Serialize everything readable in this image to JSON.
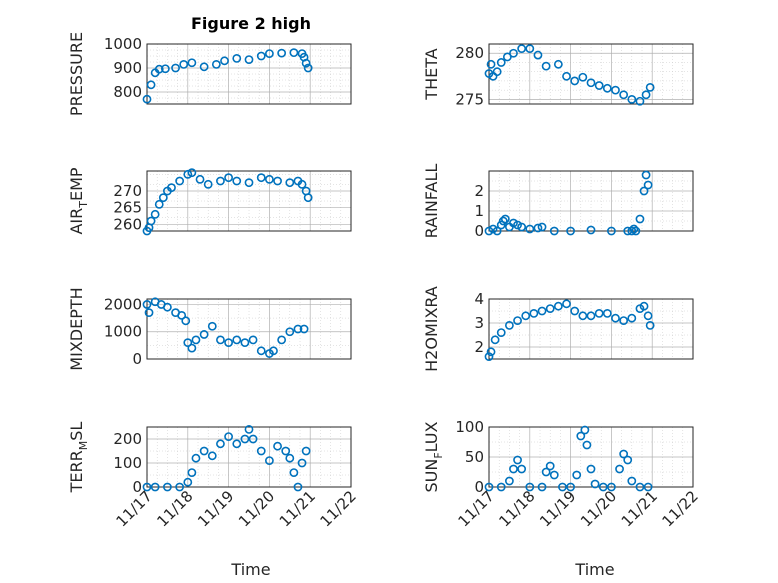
{
  "figure": {
    "title": "Figure 2 high",
    "x_label": "Time"
  },
  "chart_data": [
    {
      "id": "pressure",
      "type": "scatter",
      "ylabel": "PRESSURE",
      "xlim": [
        0,
        5
      ],
      "ylim": [
        750,
        1000
      ],
      "yticks": [
        800,
        900,
        1000
      ],
      "yminor": [
        750,
        775,
        825,
        850,
        875,
        925,
        950,
        975
      ],
      "xticks": [
        "11/17",
        "11/18",
        "11/19",
        "11/20",
        "11/21",
        "11/22"
      ],
      "show_xticklabels": false,
      "series": [
        {
          "x": [
            0,
            0.1,
            0.2,
            0.3,
            0.45,
            0.7,
            0.9,
            1.1,
            1.4,
            1.7,
            1.9,
            2.2,
            2.5,
            2.8,
            3.0,
            3.3,
            3.6,
            3.8,
            3.85,
            3.9,
            3.95
          ],
          "y": [
            770,
            830,
            880,
            895,
            897,
            900,
            915,
            922,
            905,
            915,
            930,
            940,
            935,
            950,
            960,
            962,
            964,
            960,
            945,
            920,
            900
          ]
        }
      ]
    },
    {
      "id": "theta",
      "type": "scatter",
      "ylabel": "THETA",
      "xlim": [
        0,
        5
      ],
      "ylim": [
        274.5,
        281
      ],
      "yticks": [
        275,
        280
      ],
      "yminor": [
        276,
        277,
        278,
        279
      ],
      "xticks": [
        "11/17",
        "11/18",
        "11/19",
        "11/20",
        "11/21",
        "11/22"
      ],
      "show_xticklabels": false,
      "series": [
        {
          "x": [
            0,
            0.05,
            0.1,
            0.2,
            0.3,
            0.45,
            0.6,
            0.8,
            1.0,
            1.2,
            1.4,
            1.7,
            1.9,
            2.1,
            2.3,
            2.5,
            2.7,
            2.9,
            3.1,
            3.3,
            3.5,
            3.7,
            3.85,
            3.95
          ],
          "y": [
            277.8,
            278.8,
            277.5,
            278,
            279,
            279.6,
            280,
            280.5,
            280.5,
            279.8,
            278.6,
            278.8,
            277.5,
            277,
            277.4,
            276.8,
            276.5,
            276.2,
            276,
            275.5,
            275,
            274.8,
            275.5,
            276.3
          ]
        }
      ]
    },
    {
      "id": "air_temp",
      "type": "scatter",
      "ylabel": "AIR",
      "ylabel_sub": "T",
      "ylabel_tail": "EMP",
      "xlim": [
        0,
        5
      ],
      "ylim": [
        258,
        276
      ],
      "yticks": [
        260,
        265,
        270
      ],
      "yminor": [
        258,
        262,
        267,
        272,
        275
      ],
      "xticks": [
        "11/17",
        "11/18",
        "11/19",
        "11/20",
        "11/21",
        "11/22"
      ],
      "show_xticklabels": false,
      "series": [
        {
          "x": [
            0,
            0.05,
            0.1,
            0.2,
            0.3,
            0.4,
            0.5,
            0.6,
            0.8,
            1.0,
            1.1,
            1.3,
            1.5,
            1.8,
            2.0,
            2.2,
            2.5,
            2.8,
            3.0,
            3.2,
            3.5,
            3.7,
            3.8,
            3.9,
            3.95
          ],
          "y": [
            258,
            259,
            261,
            263,
            266,
            268,
            270,
            271,
            273,
            275,
            275.5,
            273.5,
            272,
            273,
            274,
            273,
            272.5,
            274,
            273.5,
            273,
            272.5,
            273,
            272,
            270,
            268
          ]
        }
      ]
    },
    {
      "id": "rainfall",
      "type": "scatter",
      "ylabel": "RAINFALL",
      "xlim": [
        0,
        5
      ],
      "ylim": [
        0,
        3
      ],
      "yticks": [
        0,
        1,
        2
      ],
      "yminor": [
        0.5,
        1.5,
        2.5
      ],
      "xticks": [
        "11/17",
        "11/18",
        "11/19",
        "11/20",
        "11/21",
        "11/22"
      ],
      "show_xticklabels": false,
      "series": [
        {
          "x": [
            0,
            0.1,
            0.2,
            0.3,
            0.35,
            0.4,
            0.5,
            0.6,
            0.7,
            0.8,
            1.0,
            1.2,
            1.3,
            1.6,
            2.0,
            2.5,
            3.0,
            3.4,
            3.5,
            3.55,
            3.6,
            3.7,
            3.8,
            3.85,
            3.9
          ],
          "y": [
            0,
            0.1,
            0,
            0.3,
            0.5,
            0.6,
            0.2,
            0.4,
            0.3,
            0.2,
            0.1,
            0.15,
            0.2,
            0,
            0,
            0.05,
            0,
            0,
            0,
            0.1,
            0,
            0.6,
            2.0,
            2.8,
            2.3
          ]
        }
      ]
    },
    {
      "id": "mixdepth",
      "type": "scatter",
      "ylabel": "MIXDEPTH",
      "xlim": [
        0,
        5
      ],
      "ylim": [
        0,
        2200
      ],
      "yticks": [
        0,
        1000,
        2000
      ],
      "yminor": [
        500,
        1500
      ],
      "xticks": [
        "11/17",
        "11/18",
        "11/19",
        "11/20",
        "11/21",
        "11/22"
      ],
      "show_xticklabels": false,
      "series": [
        {
          "x": [
            0,
            0.05,
            0.2,
            0.35,
            0.5,
            0.7,
            0.85,
            0.95,
            1.0,
            1.1,
            1.2,
            1.4,
            1.6,
            1.8,
            2.0,
            2.2,
            2.4,
            2.6,
            2.8,
            3.0,
            3.1,
            3.3,
            3.5,
            3.7,
            3.85
          ],
          "y": [
            2000,
            1700,
            2100,
            2000,
            1900,
            1700,
            1600,
            1400,
            600,
            400,
            700,
            900,
            1200,
            700,
            600,
            700,
            600,
            700,
            300,
            200,
            300,
            700,
            1000,
            1100,
            1100
          ]
        }
      ]
    },
    {
      "id": "h2omixra",
      "type": "scatter",
      "ylabel": "H2OMIXRA",
      "xlim": [
        0,
        5
      ],
      "ylim": [
        1.5,
        4
      ],
      "yticks": [
        2,
        3,
        4
      ],
      "yminor": [
        2.5,
        3.5
      ],
      "xticks": [
        "11/17",
        "11/18",
        "11/19",
        "11/20",
        "11/21",
        "11/22"
      ],
      "show_xticklabels": false,
      "series": [
        {
          "x": [
            0,
            0.05,
            0.15,
            0.3,
            0.5,
            0.7,
            0.9,
            1.1,
            1.3,
            1.5,
            1.7,
            1.9,
            2.1,
            2.3,
            2.5,
            2.7,
            2.9,
            3.1,
            3.3,
            3.5,
            3.7,
            3.8,
            3.9,
            3.95
          ],
          "y": [
            1.6,
            1.8,
            2.3,
            2.6,
            2.9,
            3.1,
            3.3,
            3.4,
            3.5,
            3.6,
            3.7,
            3.8,
            3.5,
            3.3,
            3.3,
            3.4,
            3.4,
            3.2,
            3.1,
            3.2,
            3.6,
            3.7,
            3.3,
            2.9
          ]
        }
      ]
    },
    {
      "id": "terr_msl",
      "type": "scatter",
      "ylabel": "TERR",
      "ylabel_sub": "M",
      "ylabel_tail": "SL",
      "xlim": [
        0,
        5
      ],
      "ylim": [
        0,
        250
      ],
      "yticks": [
        0,
        100,
        200
      ],
      "yminor": [
        50,
        150
      ],
      "xticks": [
        "11/17",
        "11/18",
        "11/19",
        "11/20",
        "11/21",
        "11/22"
      ],
      "show_xticklabels": true,
      "series": [
        {
          "x": [
            0,
            0.2,
            0.5,
            0.8,
            1.0,
            1.1,
            1.2,
            1.4,
            1.6,
            1.8,
            2.0,
            2.2,
            2.4,
            2.5,
            2.6,
            2.8,
            3.0,
            3.2,
            3.4,
            3.5,
            3.6,
            3.7,
            3.8,
            3.9
          ],
          "y": [
            0,
            0,
            0,
            0,
            20,
            60,
            120,
            150,
            130,
            180,
            210,
            180,
            200,
            240,
            200,
            150,
            110,
            170,
            150,
            120,
            60,
            0,
            100,
            150
          ]
        }
      ]
    },
    {
      "id": "sun_flux",
      "type": "scatter",
      "ylabel": "SUN",
      "ylabel_sub": "F",
      "ylabel_tail": "LUX",
      "xlim": [
        0,
        5
      ],
      "ylim": [
        0,
        100
      ],
      "yticks": [
        0,
        50,
        100
      ],
      "yminor": [
        25,
        75
      ],
      "xticks": [
        "11/17",
        "11/18",
        "11/19",
        "11/20",
        "11/21",
        "11/22"
      ],
      "show_xticklabels": true,
      "series": [
        {
          "x": [
            0,
            0.3,
            0.5,
            0.6,
            0.7,
            0.8,
            1.0,
            1.3,
            1.4,
            1.5,
            1.6,
            1.8,
            2.0,
            2.15,
            2.25,
            2.35,
            2.4,
            2.5,
            2.6,
            2.8,
            3.0,
            3.2,
            3.3,
            3.4,
            3.5,
            3.7,
            3.9
          ],
          "y": [
            0,
            0,
            10,
            30,
            45,
            30,
            0,
            0,
            25,
            35,
            20,
            0,
            0,
            20,
            85,
            95,
            70,
            30,
            5,
            0,
            0,
            30,
            55,
            45,
            10,
            0,
            0
          ]
        }
      ]
    }
  ]
}
